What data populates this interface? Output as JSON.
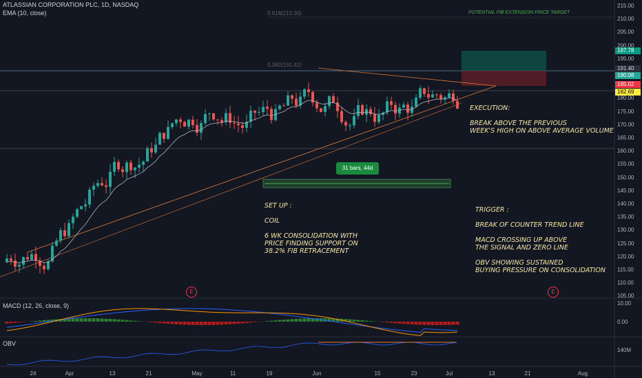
{
  "header": {
    "symbol_line": "ATLASSIAN CORPORATION PLC, 1D, NASDAQ",
    "ema_line": "EMA (10, close)"
  },
  "macd": {
    "label": "MACD (12, 26, close, 9)"
  },
  "obv": {
    "label": "OBV"
  },
  "y_axis": [
    "215.00",
    "210.00",
    "205.00",
    "200.00",
    "195.00",
    "190.00",
    "185.00",
    "180.00",
    "175.00",
    "170.00",
    "165.00",
    "160.00",
    "155.00",
    "150.00",
    "145.00",
    "140.00",
    "135.00",
    "130.00",
    "125.00",
    "120.00",
    "115.00",
    "110.00",
    "105.00"
  ],
  "price_tags": {
    "target": "197.78",
    "resist": "191.40",
    "last": "190.08",
    "stop": "185.02",
    "support": "182.69"
  },
  "macd_axis": [
    "10.00",
    "0.00"
  ],
  "obv_axis": "140M",
  "x_axis": [
    "24",
    "Apr",
    "13",
    "21",
    "May",
    "11",
    "19",
    "Jun",
    "15",
    "23",
    "Jul",
    "13",
    "21",
    "Aug"
  ],
  "fib": {
    "upper": "0.618(210.30)",
    "lower": "0.382(191.41)",
    "target_text": "POTENTIAL FIB EXTENSION PRICE TARGET"
  },
  "bars_box": "31 bars, 44d",
  "earnings_marker": "E",
  "notes": {
    "execution": "EXECUTION:\n\nBREAK ABOVE THE PREVIOUS\nWEEK'S HIGH ON ABOVE AVERAGE VOLUME",
    "setup": "SET UP :\n\nCOIL\n\n6 WK CONSOLIDATION WITH\nPRICE FINDING SUPPORT ON\n38.2% FIB RETRACEMENT",
    "trigger": "TRIGGER :\n\nBREAK OF COUNTER TREND LINE\n\nMACD CROSSING UP ABOVE\nTHE SIGNAL AND ZERO LINE\n\nOBV SHOWING SUSTAINED\nBUYING PRESSURE ON CONSOLIDATION"
  },
  "colors": {
    "up": "#26a69a",
    "down": "#ef5350",
    "accent_green": "#089981",
    "accent_red": "#f23645",
    "ema": "#b2b5be",
    "trend": "#e07b39"
  }
}
